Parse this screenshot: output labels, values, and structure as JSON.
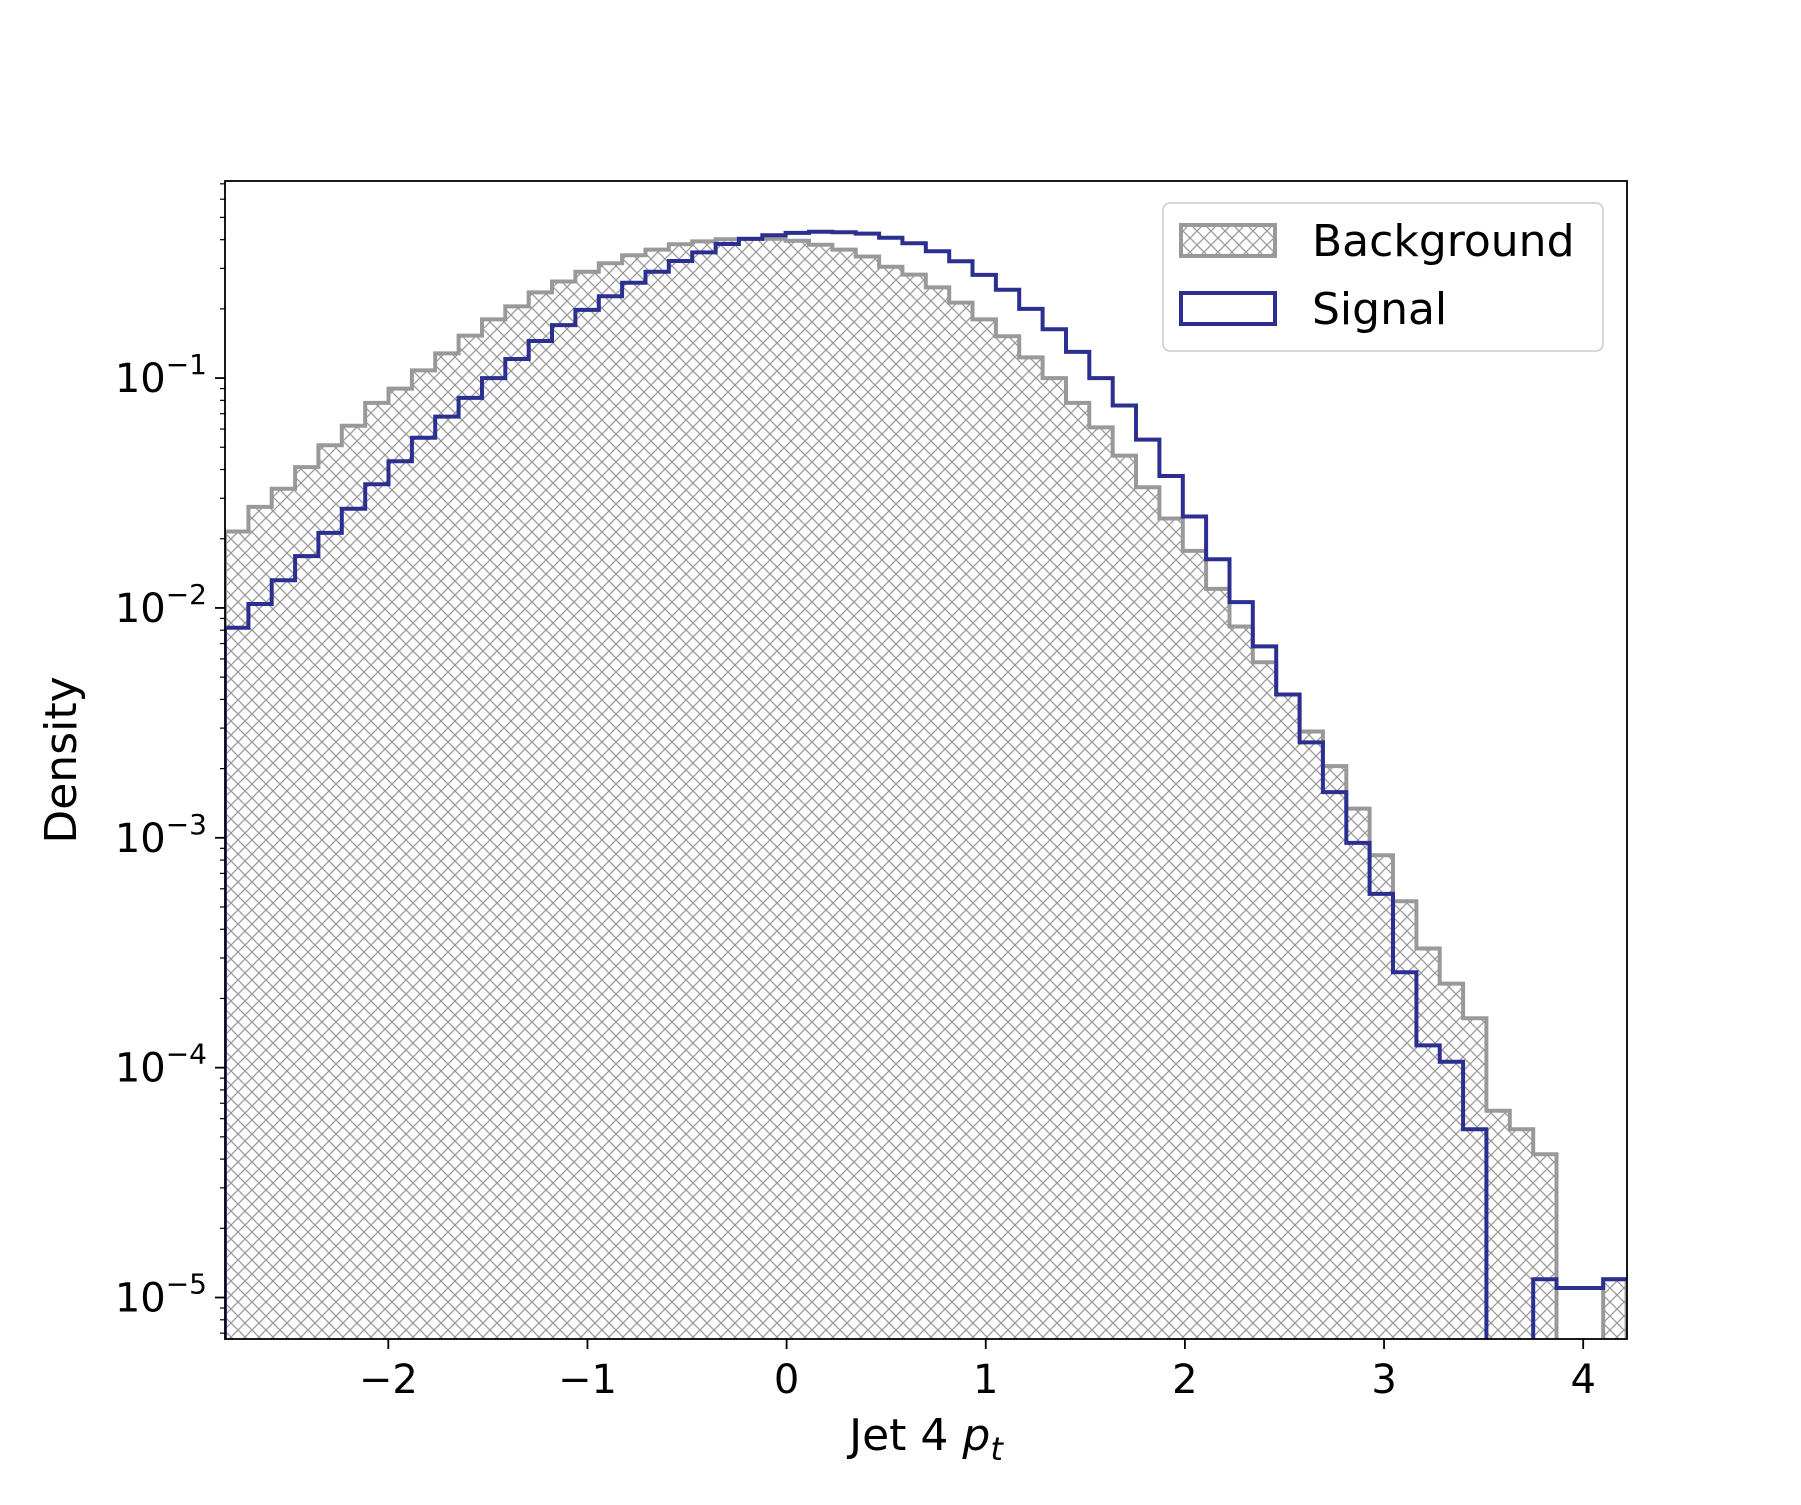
{
  "chart_data": {
    "type": "histogram",
    "xlabel": "Jet 4",
    "xlabel_math": "p",
    "xlabel_math_sub": "t",
    "ylabel": "Density",
    "yscale": "log",
    "xlim": [
      -2.82,
      4.22
    ],
    "ylim": [
      6.6e-06,
      0.72
    ],
    "x_ticks": [
      {
        "value": -2,
        "label": "−2"
      },
      {
        "value": -1,
        "label": "−1"
      },
      {
        "value": 0,
        "label": "0"
      },
      {
        "value": 1,
        "label": "1"
      },
      {
        "value": 2,
        "label": "2"
      },
      {
        "value": 3,
        "label": "3"
      },
      {
        "value": 4,
        "label": "4"
      }
    ],
    "y_ticks": [
      {
        "value": 0.1,
        "base": "10",
        "exp": "−1"
      },
      {
        "value": 0.01,
        "base": "10",
        "exp": "−2"
      },
      {
        "value": 0.001,
        "base": "10",
        "exp": "−3"
      },
      {
        "value": 0.0001,
        "base": "10",
        "exp": "−4"
      },
      {
        "value": 1e-05,
        "base": "10",
        "exp": "−5"
      }
    ],
    "bin_start": -2.82,
    "bin_width": 0.1173,
    "series": [
      {
        "name": "Background",
        "style": "hatched-filled",
        "color": "#999999",
        "values": [
          0.0215,
          0.0275,
          0.033,
          0.041,
          0.051,
          0.062,
          0.078,
          0.09,
          0.108,
          0.128,
          0.153,
          0.18,
          0.205,
          0.236,
          0.263,
          0.29,
          0.316,
          0.342,
          0.362,
          0.382,
          0.393,
          0.402,
          0.404,
          0.404,
          0.396,
          0.38,
          0.362,
          0.338,
          0.305,
          0.282,
          0.248,
          0.213,
          0.18,
          0.152,
          0.123,
          0.1,
          0.078,
          0.061,
          0.046,
          0.0335,
          0.0245,
          0.0177,
          0.0121,
          0.0083,
          0.0058,
          0.0042,
          0.0029,
          0.00205,
          0.00134,
          0.00084,
          0.00053,
          0.00033,
          0.000232,
          0.000164,
          6.5e-05,
          5.4e-05,
          4.2e-05,
          0,
          0,
          1.2e-05
        ]
      },
      {
        "name": "Signal",
        "style": "step-outline",
        "color": "#2b2f8f",
        "values": [
          0.0082,
          0.0104,
          0.0132,
          0.0168,
          0.0212,
          0.027,
          0.0345,
          0.0435,
          0.055,
          0.068,
          0.082,
          0.1,
          0.121,
          0.145,
          0.17,
          0.198,
          0.227,
          0.26,
          0.29,
          0.323,
          0.352,
          0.383,
          0.403,
          0.418,
          0.428,
          0.433,
          0.431,
          0.425,
          0.408,
          0.386,
          0.356,
          0.322,
          0.281,
          0.242,
          0.2,
          0.163,
          0.13,
          0.1,
          0.076,
          0.054,
          0.0375,
          0.025,
          0.0163,
          0.0106,
          0.0068,
          0.0042,
          0.0026,
          0.00158,
          0.00095,
          0.00057,
          0.00026,
          0.000125,
          0.000106,
          5.4e-05,
          0,
          0,
          1.2e-05,
          1.1e-05,
          1.1e-05,
          1.2e-05
        ]
      }
    ],
    "legend": {
      "position": "upper right",
      "entries": [
        {
          "label": "Background",
          "style": "hatched"
        },
        {
          "label": "Signal",
          "style": "outline"
        }
      ]
    },
    "grid": false
  }
}
